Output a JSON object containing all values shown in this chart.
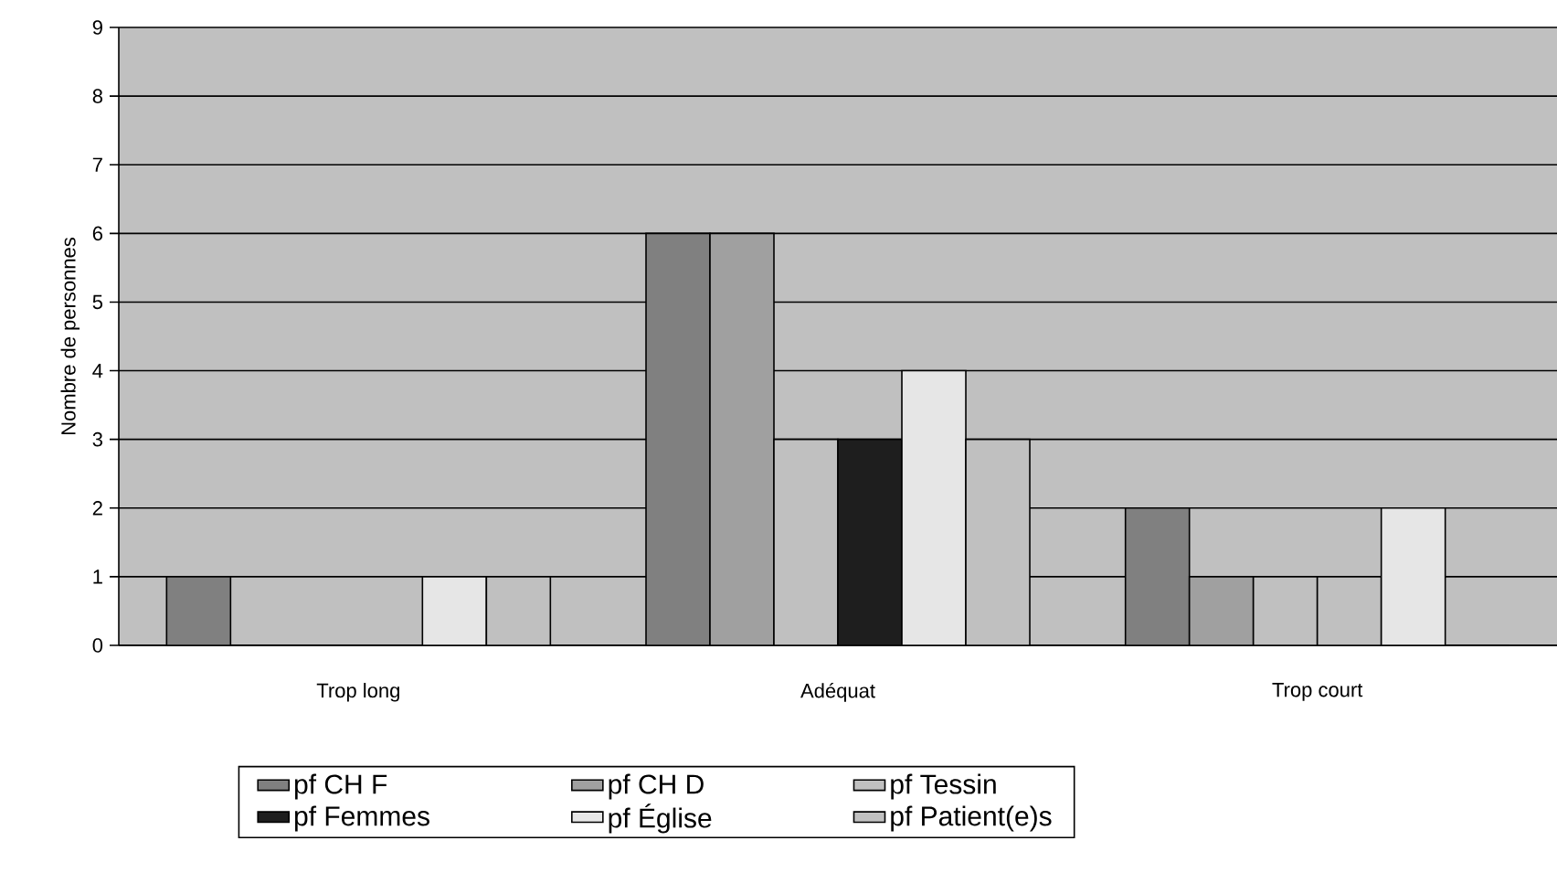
{
  "chart_data": {
    "type": "bar",
    "ylabel": "Nombre de personnes",
    "categories": [
      "Trop long",
      "Adéquat",
      "Trop court"
    ],
    "series": [
      {
        "name": "pf CH F",
        "color": "#808080",
        "values": [
          1,
          6,
          2
        ]
      },
      {
        "name": "pf CH D",
        "color": "#a0a0a0",
        "values": [
          0,
          6,
          1
        ]
      },
      {
        "name": "pf Tessin",
        "color": "#c0c0c0",
        "values": [
          0,
          3,
          1
        ]
      },
      {
        "name": "pf Femmes",
        "color": "#1e1e1e",
        "colors": [
          "#1e1e1e",
          "#1e1e1e",
          "#c0c0c0"
        ],
        "values": [
          0,
          3,
          1
        ]
      },
      {
        "name": "pf Église",
        "color": "#e6e6e6",
        "values": [
          1,
          4,
          2
        ]
      },
      {
        "name": "pf Patient(e)s",
        "color": "#c0c0c0",
        "values": [
          1,
          3,
          0
        ]
      }
    ],
    "ylim": [
      0,
      9
    ],
    "yticks": [
      0,
      1,
      2,
      3,
      4,
      5,
      6,
      7,
      8,
      9
    ],
    "grid": "y",
    "legend": "bottom"
  }
}
